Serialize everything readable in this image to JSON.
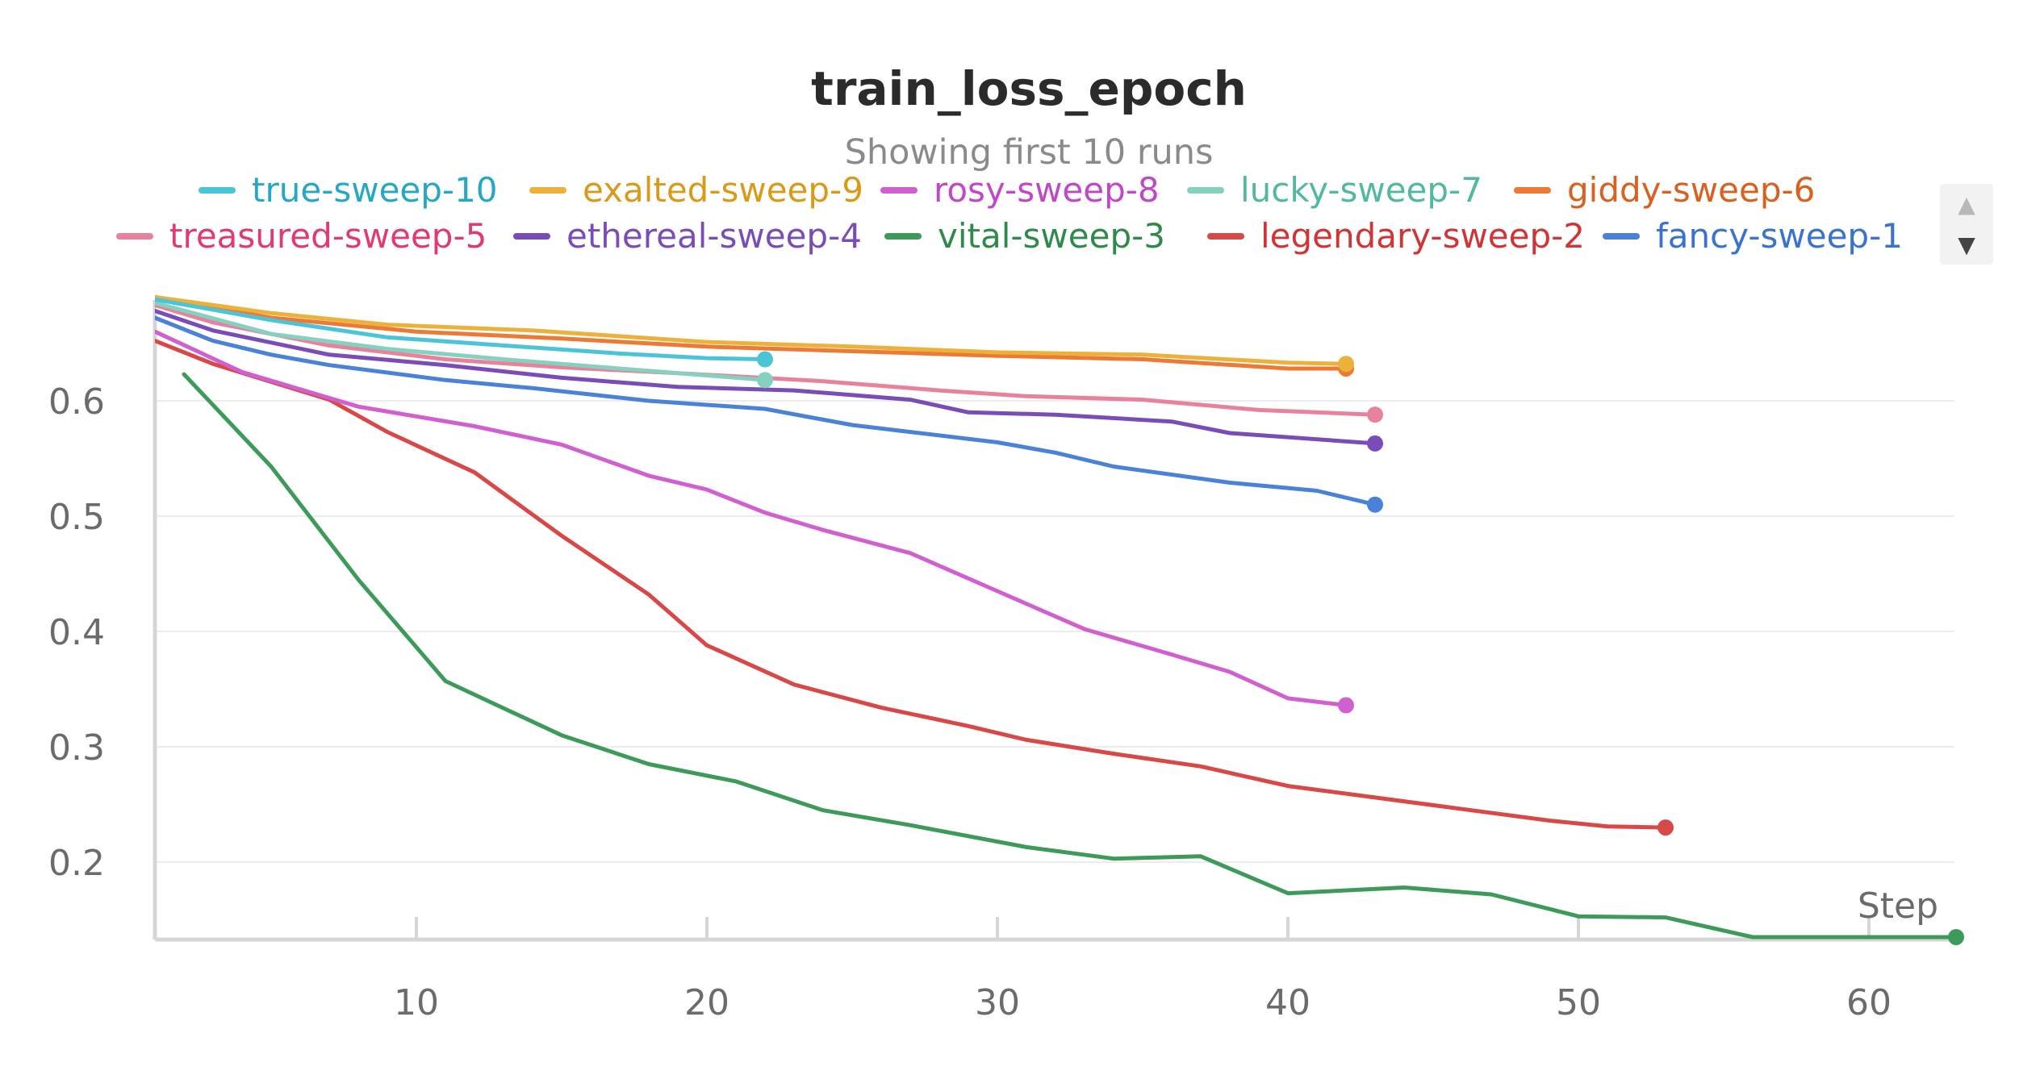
{
  "chart_data": {
    "type": "line",
    "title": "train_loss_epoch",
    "subtitle": "Showing first 10 runs",
    "xlabel": "Step",
    "ylabel": "",
    "xlim": [
      1,
      63
    ],
    "ylim": [
      0.135,
      0.695
    ],
    "xticks": [
      10,
      20,
      30,
      40,
      50,
      60
    ],
    "yticks": [
      0.2,
      0.3,
      0.4,
      0.5,
      0.6
    ],
    "grid": true,
    "legend_position": "top",
    "series": [
      {
        "name": "true-sweep-10",
        "color": "#4cc4d8",
        "text_color": "#26a8c4",
        "x": [
          1,
          5,
          9,
          13,
          17,
          20,
          22
        ],
        "y": [
          0.688,
          0.67,
          0.655,
          0.648,
          0.641,
          0.637,
          0.636
        ]
      },
      {
        "name": "exalted-sweep-9",
        "color": "#ecb13a",
        "text_color": "#d99a1a",
        "x": [
          1,
          5,
          9,
          14,
          20,
          25,
          30,
          35,
          40,
          42
        ],
        "y": [
          0.69,
          0.676,
          0.666,
          0.661,
          0.651,
          0.647,
          0.642,
          0.64,
          0.633,
          0.632
        ]
      },
      {
        "name": "rosy-sweep-8",
        "color": "#d060d0",
        "text_color": "#c048c8",
        "x": [
          1,
          4,
          8,
          12,
          15,
          18,
          20,
          22,
          24,
          27,
          30,
          33,
          36,
          38,
          40,
          42
        ],
        "y": [
          0.66,
          0.625,
          0.595,
          0.578,
          0.562,
          0.535,
          0.523,
          0.503,
          0.488,
          0.468,
          0.435,
          0.402,
          0.38,
          0.365,
          0.342,
          0.336
        ]
      },
      {
        "name": "lucky-sweep-7",
        "color": "#86d0bf",
        "text_color": "#52b8a0",
        "x": [
          1,
          5,
          9,
          13,
          17,
          20,
          22
        ],
        "y": [
          0.685,
          0.658,
          0.645,
          0.636,
          0.628,
          0.622,
          0.618
        ]
      },
      {
        "name": "giddy-sweep-6",
        "color": "#ec7a34",
        "text_color": "#d86020",
        "x": [
          1,
          5,
          10,
          15,
          20,
          25,
          30,
          35,
          40,
          42
        ],
        "y": [
          0.69,
          0.672,
          0.66,
          0.654,
          0.647,
          0.643,
          0.639,
          0.636,
          0.628,
          0.628
        ]
      },
      {
        "name": "treasured-sweep-5",
        "color": "#e8829c",
        "text_color": "#e03a6e",
        "x": [
          1,
          3,
          7,
          11,
          15,
          19,
          24,
          28,
          31,
          35,
          39,
          43
        ],
        "y": [
          0.683,
          0.668,
          0.648,
          0.636,
          0.629,
          0.624,
          0.617,
          0.609,
          0.604,
          0.601,
          0.592,
          0.588
        ]
      },
      {
        "name": "ethereal-sweep-4",
        "color": "#7a4cb8",
        "text_color": "#7a4cb8",
        "x": [
          1,
          3,
          7,
          11,
          15,
          19,
          23,
          27,
          29,
          32,
          36,
          38,
          43
        ],
        "y": [
          0.678,
          0.661,
          0.64,
          0.631,
          0.62,
          0.612,
          0.609,
          0.601,
          0.59,
          0.588,
          0.582,
          0.572,
          0.563
        ]
      },
      {
        "name": "vital-sweep-3",
        "color": "#3e9a5a",
        "text_color": "#2e8a4a",
        "x": [
          2,
          5,
          8,
          11,
          15,
          18,
          21,
          24,
          27,
          31,
          34,
          37,
          40,
          44,
          47,
          50,
          53,
          56,
          59,
          63
        ],
        "y": [
          0.623,
          0.543,
          0.445,
          0.357,
          0.31,
          0.285,
          0.27,
          0.245,
          0.232,
          0.213,
          0.203,
          0.205,
          0.173,
          0.178,
          0.172,
          0.153,
          0.152,
          0.135,
          0.135,
          0.135
        ]
      },
      {
        "name": "legendary-sweep-2",
        "color": "#d84848",
        "text_color": "#d03434",
        "x": [
          1,
          3,
          7,
          9,
          12,
          15,
          18,
          20,
          23,
          26,
          29,
          31,
          34,
          37,
          40,
          43,
          46,
          49,
          51,
          53
        ],
        "y": [
          0.652,
          0.632,
          0.601,
          0.573,
          0.538,
          0.483,
          0.432,
          0.388,
          0.354,
          0.334,
          0.318,
          0.306,
          0.294,
          0.283,
          0.266,
          0.256,
          0.246,
          0.236,
          0.231,
          0.23
        ]
      },
      {
        "name": "fancy-sweep-1",
        "color": "#4a82d8",
        "text_color": "#3a72d0",
        "x": [
          1,
          3,
          5,
          7,
          11,
          14,
          18,
          22,
          25,
          27,
          30,
          32,
          34,
          38,
          41,
          43
        ],
        "y": [
          0.672,
          0.652,
          0.64,
          0.631,
          0.618,
          0.611,
          0.6,
          0.593,
          0.579,
          0.573,
          0.564,
          0.555,
          0.543,
          0.529,
          0.522,
          0.51
        ]
      }
    ]
  },
  "legend_scroll": {
    "up_icon": "▲",
    "down_icon": "▼"
  }
}
